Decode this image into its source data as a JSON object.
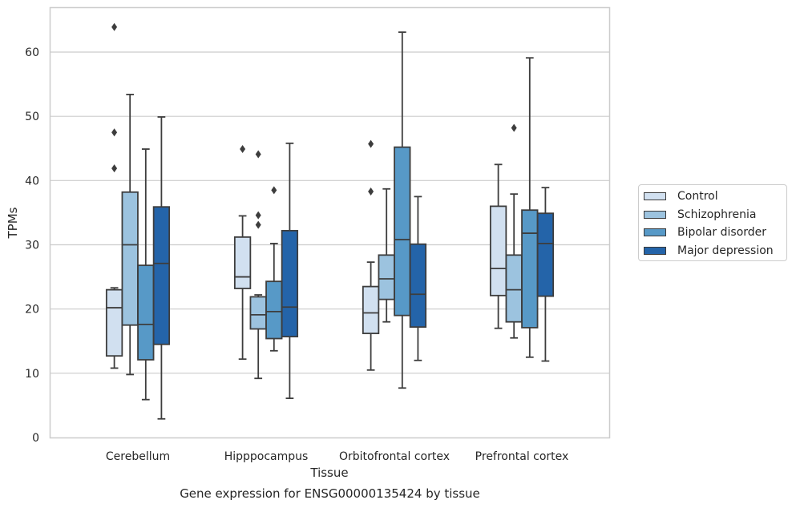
{
  "chart_data": {
    "type": "box",
    "xlabel": "Tissue",
    "ylabel": "TPMs",
    "caption": "Gene expression for ENSG00000135424 by tissue",
    "ylim": [
      0,
      67
    ],
    "yticks": [
      0,
      10,
      20,
      30,
      40,
      50,
      60
    ],
    "grid": "horizontal",
    "legend_position": "right",
    "categories": [
      "Cerebellum",
      "Hipppocampus",
      "Orbitofrontal cortex",
      "Prefrontal cortex"
    ],
    "series": [
      {
        "name": "Control",
        "color": "#d1e0f0",
        "boxes": [
          {
            "whisker_low": 10.8,
            "q1": 12.7,
            "median": 20.2,
            "q3": 23.0,
            "whisker_high": 23.3,
            "outliers": [
              63.9,
              47.5,
              41.9
            ]
          },
          {
            "whisker_low": 12.2,
            "q1": 23.2,
            "median": 25.0,
            "q3": 31.2,
            "whisker_high": 34.5,
            "outliers": [
              44.9
            ]
          },
          {
            "whisker_low": 10.5,
            "q1": 16.2,
            "median": 19.4,
            "q3": 23.5,
            "whisker_high": 27.3,
            "outliers": [
              45.7,
              38.3
            ]
          },
          {
            "whisker_low": 17.0,
            "q1": 22.1,
            "median": 26.3,
            "q3": 36.0,
            "whisker_high": 42.5,
            "outliers": []
          }
        ]
      },
      {
        "name": "Schizophrenia",
        "color": "#9cc3df",
        "boxes": [
          {
            "whisker_low": 9.8,
            "q1": 17.5,
            "median": 30.0,
            "q3": 38.2,
            "whisker_high": 53.4,
            "outliers": []
          },
          {
            "whisker_low": 9.2,
            "q1": 16.9,
            "median": 19.1,
            "q3": 21.9,
            "whisker_high": 22.2,
            "outliers": [
              44.1,
              34.6,
              33.1
            ]
          },
          {
            "whisker_low": 18.0,
            "q1": 21.5,
            "median": 24.7,
            "q3": 28.4,
            "whisker_high": 38.7,
            "outliers": []
          },
          {
            "whisker_low": 15.5,
            "q1": 18.0,
            "median": 23.0,
            "q3": 28.4,
            "whisker_high": 37.9,
            "outliers": [
              48.2
            ]
          }
        ]
      },
      {
        "name": "Bipolar disorder",
        "color": "#5799c7",
        "boxes": [
          {
            "whisker_low": 5.9,
            "q1": 12.1,
            "median": 17.6,
            "q3": 26.8,
            "whisker_high": 44.9,
            "outliers": []
          },
          {
            "whisker_low": 13.5,
            "q1": 15.4,
            "median": 19.6,
            "q3": 24.3,
            "whisker_high": 30.2,
            "outliers": [
              38.5
            ]
          },
          {
            "whisker_low": 7.7,
            "q1": 19.0,
            "median": 30.8,
            "q3": 45.2,
            "whisker_high": 63.1,
            "outliers": []
          },
          {
            "whisker_low": 12.5,
            "q1": 17.1,
            "median": 31.8,
            "q3": 35.4,
            "whisker_high": 59.1,
            "outliers": []
          }
        ]
      },
      {
        "name": "Major depression",
        "color": "#2464a9",
        "boxes": [
          {
            "whisker_low": 2.9,
            "q1": 14.5,
            "median": 27.1,
            "q3": 35.9,
            "whisker_high": 49.9,
            "outliers": []
          },
          {
            "whisker_low": 6.1,
            "q1": 15.7,
            "median": 20.3,
            "q3": 32.2,
            "whisker_high": 45.8,
            "outliers": []
          },
          {
            "whisker_low": 12.0,
            "q1": 17.2,
            "median": 22.3,
            "q3": 30.1,
            "whisker_high": 37.5,
            "outliers": []
          },
          {
            "whisker_low": 11.9,
            "q1": 22.0,
            "median": 30.2,
            "q3": 34.9,
            "whisker_high": 38.9,
            "outliers": []
          }
        ]
      }
    ]
  }
}
